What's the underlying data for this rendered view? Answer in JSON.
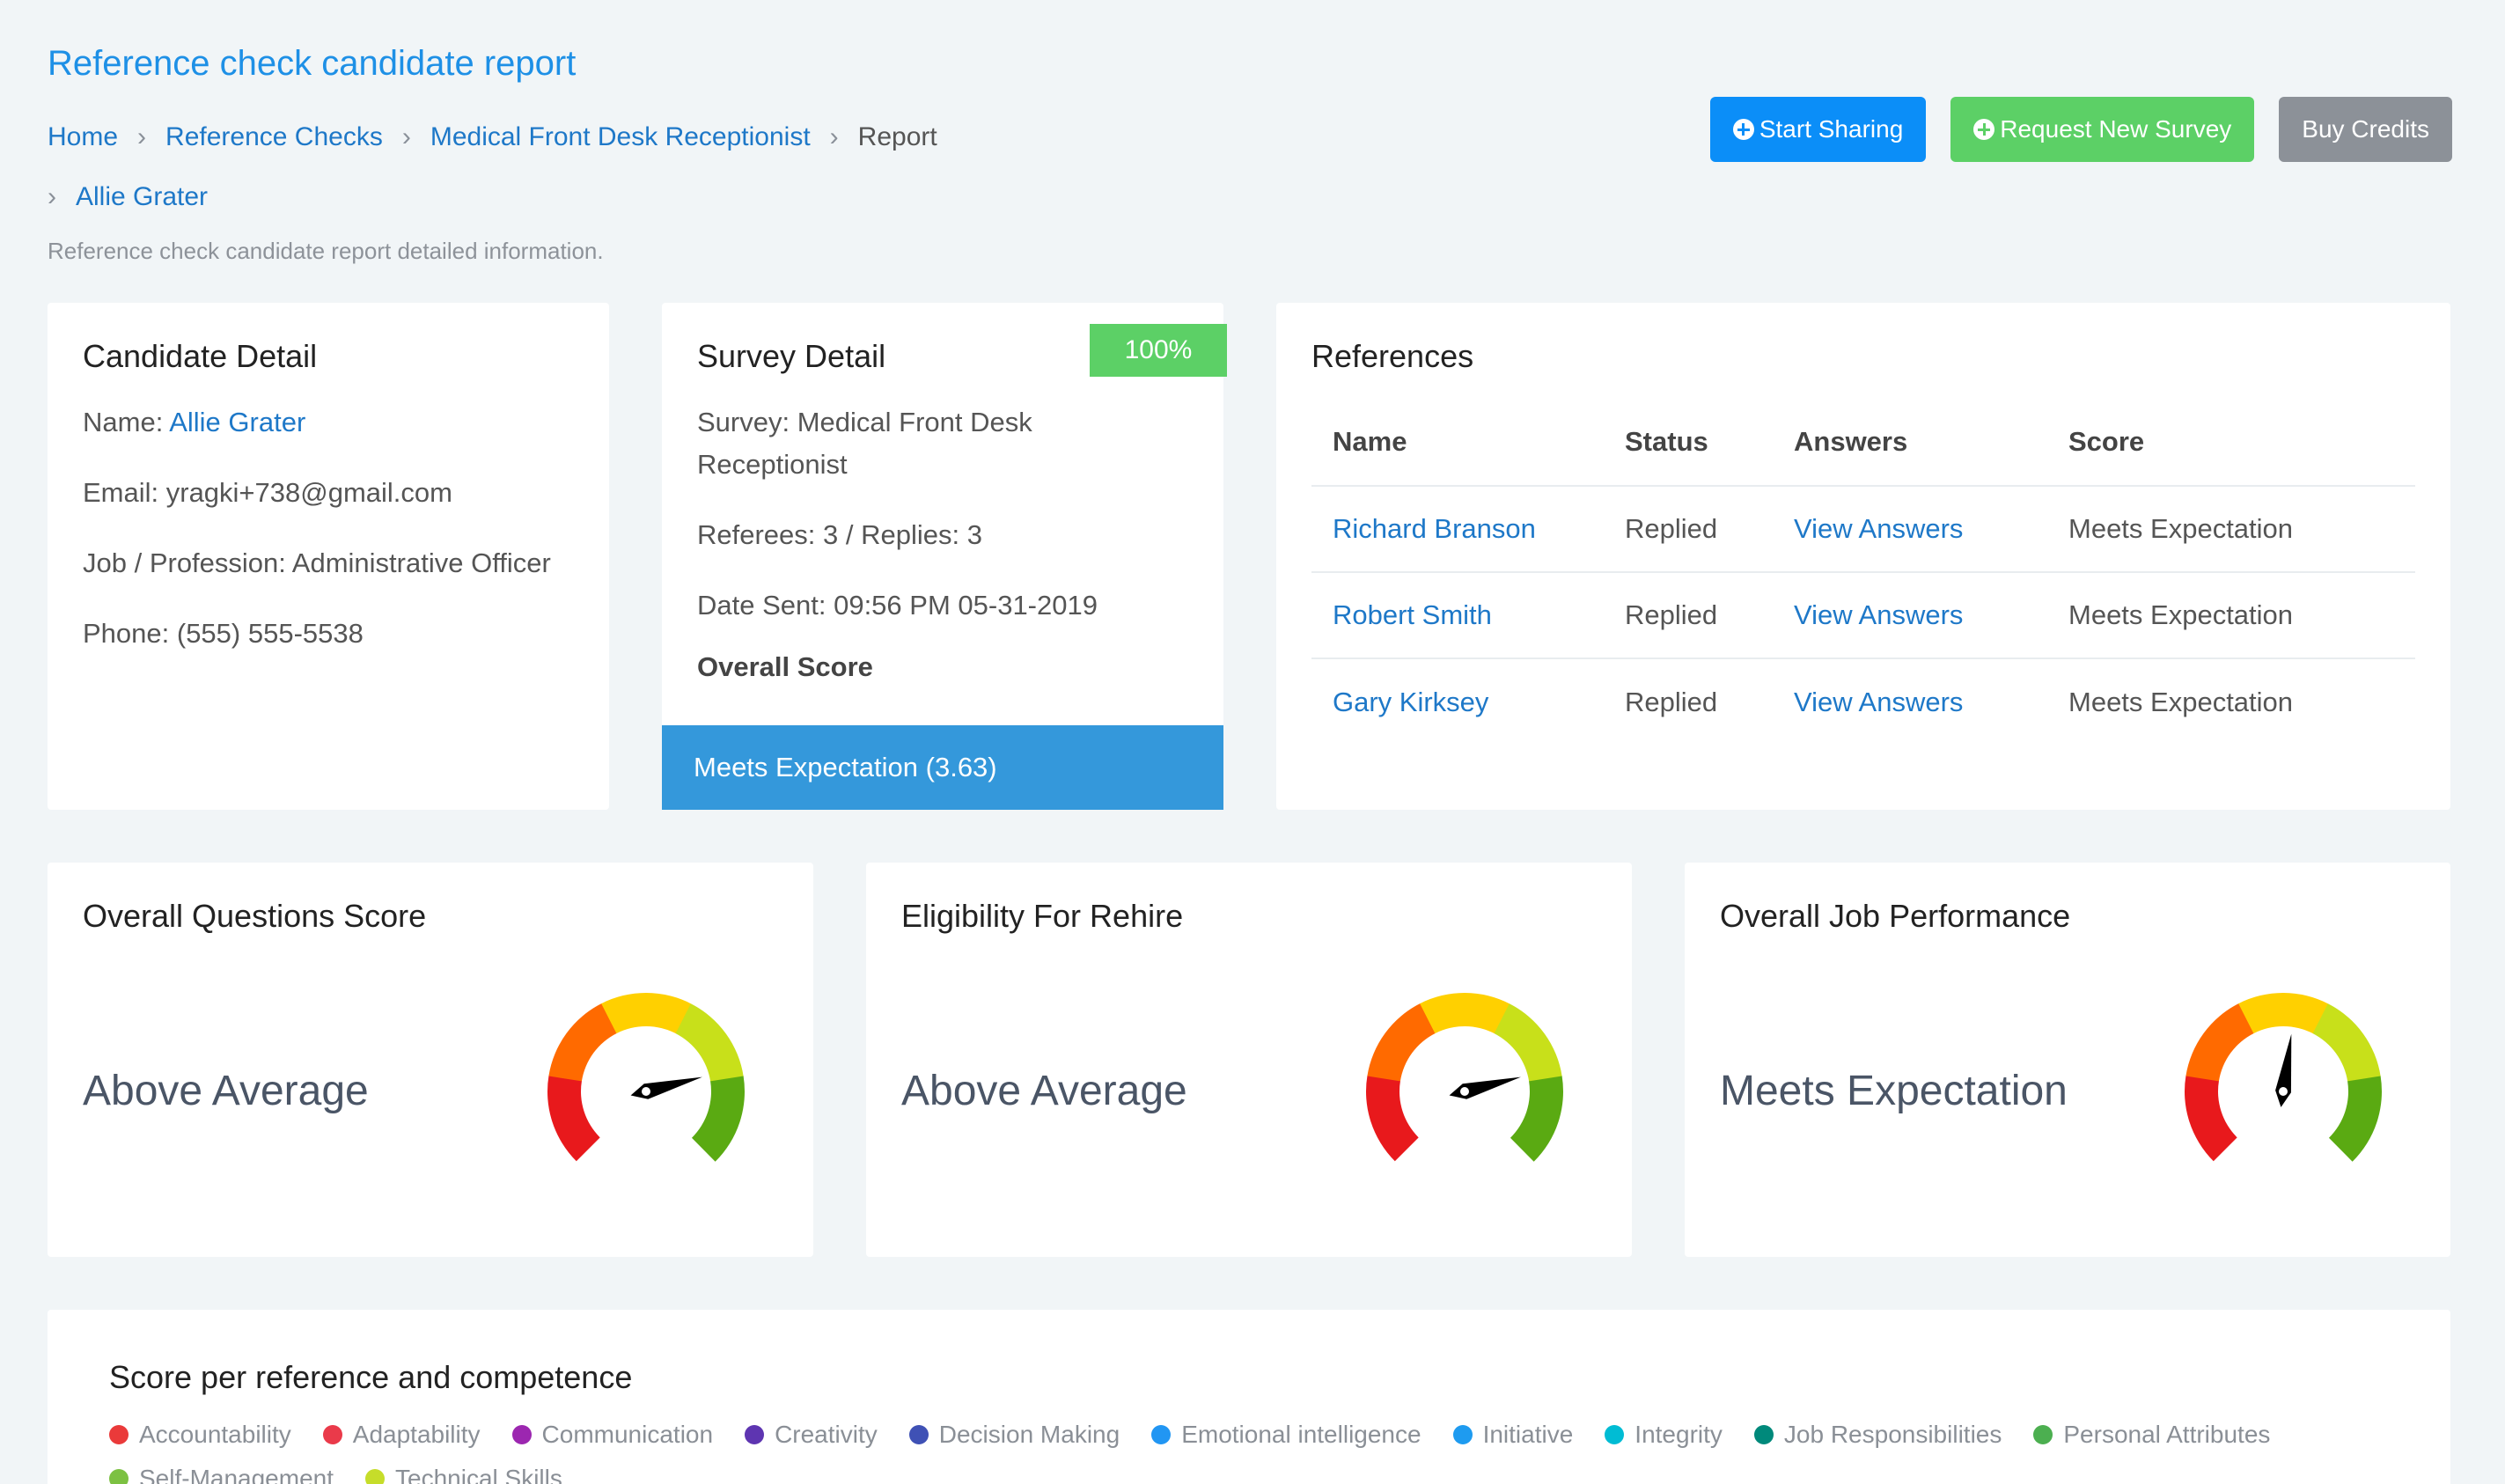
{
  "header": {
    "title": "Reference check candidate report",
    "subtitle": "Reference check candidate report detailed information.",
    "breadcrumb": [
      {
        "label": "Home",
        "link": true
      },
      {
        "label": "Reference Checks",
        "link": true
      },
      {
        "label": "Medical Front Desk Receptionist",
        "link": true
      },
      {
        "label": "Report",
        "link": false
      },
      {
        "label": "Allie Grater",
        "link": true
      }
    ],
    "buttons": {
      "start_sharing": "Start Sharing",
      "request_survey": "Request New Survey",
      "buy_credits": "Buy Credits"
    }
  },
  "candidate": {
    "title": "Candidate Detail",
    "name_label": "Name: ",
    "name": "Allie Grater",
    "email": "Email: yragki+738@gmail.com",
    "job": "Job / Profession: Administrative Officer",
    "phone": "Phone: (555) 555-5538"
  },
  "survey": {
    "title": "Survey Detail",
    "completion": "100%",
    "survey_name": "Survey: Medical Front Desk Receptionist",
    "referees": "Referees: 3 / Replies: 3",
    "date_sent": "Date Sent: 09:56 PM 05-31-2019",
    "overall_label": "Overall Score",
    "overall_value": "Meets Expectation (3.63)"
  },
  "references": {
    "title": "References",
    "columns": {
      "name": "Name",
      "status": "Status",
      "answers": "Answers",
      "score": "Score"
    },
    "rows": [
      {
        "name": "Richard Branson",
        "status": "Replied",
        "answers": "View Answers",
        "score": "Meets Expectation"
      },
      {
        "name": "Robert Smith",
        "status": "Replied",
        "answers": "View Answers",
        "score": "Meets Expectation"
      },
      {
        "name": "Gary Kirksey",
        "status": "Replied",
        "answers": "View Answers",
        "score": "Meets Expectation"
      }
    ]
  },
  "gauges": [
    {
      "title": "Overall Questions Score",
      "value": "Above Average",
      "level": 0.78
    },
    {
      "title": "Eligibility For Rehire",
      "value": "Above Average",
      "level": 0.78
    },
    {
      "title": "Overall Job Performance",
      "value": "Meets Expectation",
      "level": 0.53
    }
  ],
  "gauge_colors": [
    "#e8191c",
    "#ff6a00",
    "#ffd000",
    "#c8e01a",
    "#5aaa12"
  ],
  "score_section": {
    "title": "Score per reference and competence",
    "legend": [
      {
        "label": "Accountability",
        "color": "#ea3a3a"
      },
      {
        "label": "Adaptability",
        "color": "#ea3a4a"
      },
      {
        "label": "Communication",
        "color": "#9c27b0"
      },
      {
        "label": "Creativity",
        "color": "#5e35b1"
      },
      {
        "label": "Decision Making",
        "color": "#3f51b5"
      },
      {
        "label": "Emotional intelligence",
        "color": "#2196f3"
      },
      {
        "label": "Initiative",
        "color": "#1e9bf0"
      },
      {
        "label": "Integrity",
        "color": "#00bcd4"
      },
      {
        "label": "Job Responsibilities",
        "color": "#00897b"
      },
      {
        "label": "Personal Attributes",
        "color": "#4caf50"
      },
      {
        "label": "Self-Management",
        "color": "#7cc142"
      },
      {
        "label": "Technical Skills",
        "color": "#c6dd2a"
      }
    ]
  }
}
